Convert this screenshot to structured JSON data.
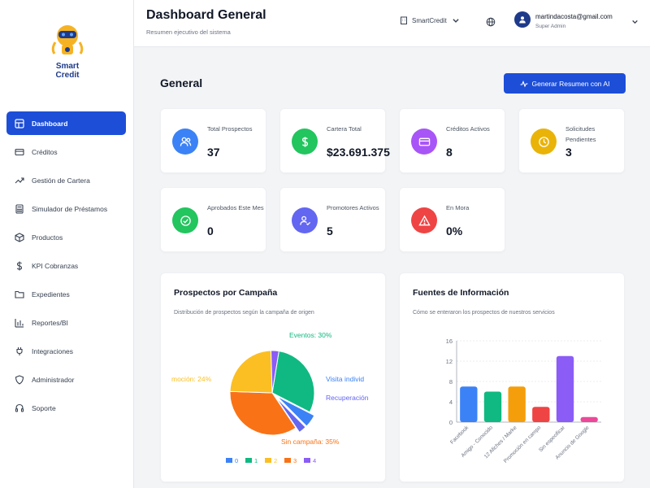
{
  "sidebar": {
    "logo_line1": "Smart",
    "logo_line2": "Credit",
    "items": [
      {
        "label": "Dashboard",
        "icon": "grid-icon",
        "active": true
      },
      {
        "label": "Créditos",
        "icon": "credit-card-icon"
      },
      {
        "label": "Gestión de Cartera",
        "icon": "trend-icon"
      },
      {
        "label": "Simulador de Préstamos",
        "icon": "calculator-icon"
      },
      {
        "label": "Productos",
        "icon": "box-icon"
      },
      {
        "label": "KPI Cobranzas",
        "icon": "dollar-icon"
      },
      {
        "label": "Expedientes",
        "icon": "folder-icon"
      },
      {
        "label": "Reportes/BI",
        "icon": "bar-chart-icon"
      },
      {
        "label": "Integraciones",
        "icon": "plug-icon"
      },
      {
        "label": "Administrador",
        "icon": "shield-icon"
      },
      {
        "label": "Soporte",
        "icon": "headset-icon"
      }
    ]
  },
  "header": {
    "title": "Dashboard General",
    "subtitle": "Resumen ejecutivo del sistema",
    "org": "SmartCredit",
    "user_email": "martindacosta@gmail.com",
    "user_role": "Super Admin"
  },
  "main": {
    "section_title": "General",
    "ai_button": "Generar Resumen con AI",
    "stats": [
      {
        "label": "Total Prospectos",
        "value": "37",
        "color": "#3b82f6",
        "icon": "users-icon"
      },
      {
        "label": "Cartera Total",
        "value": "$23.691.375",
        "color": "#22c55e",
        "icon": "dollar-icon"
      },
      {
        "label": "Créditos Activos",
        "value": "8",
        "color": "#a855f7",
        "icon": "credit-card-icon"
      },
      {
        "label": "Solicitudes Pendientes",
        "value": "3",
        "color": "#eab308",
        "icon": "clock-icon"
      },
      {
        "label": "Aprobados Este Mes",
        "value": "0",
        "color": "#22c55e",
        "icon": "check-circle-icon"
      },
      {
        "label": "Promotores Activos",
        "value": "5",
        "color": "#6366f1",
        "icon": "user-check-icon"
      },
      {
        "label": "En Mora",
        "value": "0%",
        "color": "#ef4444",
        "icon": "warning-icon"
      }
    ]
  },
  "panels": {
    "campaign": {
      "title": "Prospectos por Campaña",
      "subtitle": "Distribución de prospectos según la campaña de origen"
    },
    "sources": {
      "title": "Fuentes de Información",
      "subtitle": "Cómo se enteraron los prospectos de nuestros servicios"
    }
  },
  "chart_data": [
    {
      "type": "pie",
      "title": "Prospectos por Campaña",
      "slices": [
        {
          "label": "Eventos: 30%",
          "value": 30,
          "color": "#10b981"
        },
        {
          "label": "Visita individ",
          "value": 5,
          "color": "#3b82f6"
        },
        {
          "label": "Recuperación",
          "value": 3,
          "color": "#6366f1"
        },
        {
          "label": "Sin campaña: 35%",
          "value": 35,
          "color": "#f97316"
        },
        {
          "label": "moción: 24%",
          "value": 24,
          "color": "#fbbf24"
        },
        {
          "label": "",
          "value": 3,
          "color": "#8b5cf6"
        }
      ],
      "legend": [
        {
          "label": "0",
          "color": "#3b82f6"
        },
        {
          "label": "1",
          "color": "#10b981"
        },
        {
          "label": "2",
          "color": "#fbbf24"
        },
        {
          "label": "3",
          "color": "#f97316"
        },
        {
          "label": "4",
          "color": "#8b5cf6"
        }
      ],
      "legend_position": "bottom"
    },
    {
      "type": "bar",
      "title": "Fuentes de Información",
      "categories": [
        "Facebook",
        "Amigo - Conocido",
        "12 Afiches / Marke",
        "Promoción en campo",
        "Sin especificar",
        "Anuncio de Google"
      ],
      "values": [
        7,
        6,
        7,
        3,
        13,
        1
      ],
      "colors": [
        "#3b82f6",
        "#10b981",
        "#f59e0b",
        "#ef4444",
        "#8b5cf6",
        "#ec4899"
      ],
      "yticks": [
        "0",
        "4",
        "8",
        "12",
        "16"
      ],
      "ylim": [
        0,
        16
      ],
      "grid": true
    }
  ]
}
